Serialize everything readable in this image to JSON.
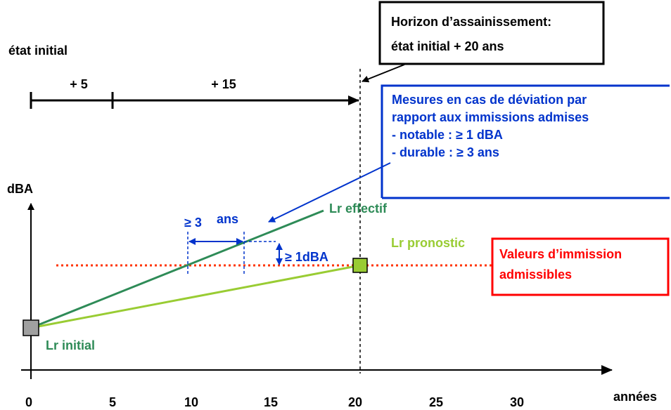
{
  "timeline": {
    "start_label": "état initial",
    "segments": [
      "+ 5",
      "+ 15"
    ]
  },
  "horizon_box": {
    "lines": [
      "Horizon d’assainissement:",
      "état initial + 20 ans"
    ]
  },
  "measures_box": {
    "lines": [
      "Mesures en cas de déviation par",
      "rapport aux immissions admises",
      "- notable :  ≥ 1 dBA",
      "- durable :  ≥ 3 ans"
    ]
  },
  "axes": {
    "y_label": "dBA",
    "x_label": "années",
    "x_ticks": [
      "0",
      "5",
      "10",
      "15",
      "20",
      "25",
      "30"
    ]
  },
  "lines": {
    "effectif": "Lr effectif",
    "pronostic": "Lr pronostic",
    "initial": "Lr initial"
  },
  "limit_box": {
    "lines": [
      "Valeurs d’immission",
      "admissibles"
    ]
  },
  "annotations": {
    "years_symbol": "≥ 3",
    "years_unit": "ans",
    "dba": "≥ 1dBA"
  }
}
